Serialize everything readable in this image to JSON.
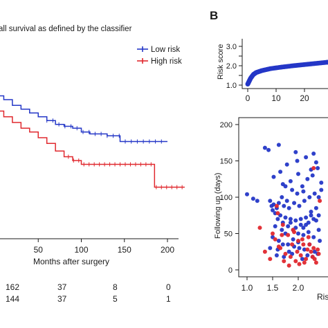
{
  "panel_a": {
    "title": "all survival as defined by the classifier",
    "legend": [
      "Low risk",
      "High risk"
    ]
  },
  "panel_b": {
    "label": "B"
  },
  "colors": {
    "low": "#2437c7",
    "high": "#e0282e",
    "axis": "#1a1a1a"
  },
  "risk_table": {
    "rows": [
      {
        "group": "Low risk",
        "values": [
          "162",
          "37",
          "8",
          "0"
        ]
      },
      {
        "group": "High risk",
        "values": [
          "144",
          "37",
          "5",
          "1"
        ]
      }
    ]
  },
  "chart_data": [
    {
      "type": "line",
      "title": "all survival as defined by the classifier",
      "xlabel": "Months after surgery",
      "ylabel": "",
      "xlim": [
        0,
        200
      ],
      "ylim": [
        0.2,
        1.0
      ],
      "x_ticks": [
        "50",
        "100",
        "150",
        "200"
      ],
      "series": [
        {
          "name": "Low risk",
          "x": [
            0,
            10,
            20,
            30,
            40,
            50,
            60,
            70,
            80,
            90,
            100,
            110,
            120,
            130,
            140,
            145,
            150,
            160,
            170,
            180,
            190,
            200
          ],
          "y": [
            0.86,
            0.84,
            0.81,
            0.79,
            0.77,
            0.75,
            0.73,
            0.71,
            0.7,
            0.69,
            0.67,
            0.66,
            0.66,
            0.65,
            0.65,
            0.62,
            0.62,
            0.62,
            0.62,
            0.62,
            0.62,
            0.62
          ]
        },
        {
          "name": "High risk",
          "x": [
            0,
            10,
            20,
            30,
            40,
            50,
            60,
            70,
            80,
            90,
            100,
            120,
            140,
            160,
            180,
            185,
            200,
            220
          ],
          "y": [
            0.78,
            0.75,
            0.72,
            0.69,
            0.67,
            0.64,
            0.61,
            0.57,
            0.54,
            0.52,
            0.5,
            0.5,
            0.5,
            0.5,
            0.5,
            0.38,
            0.38,
            0.38
          ]
        }
      ]
    },
    {
      "type": "line",
      "title": "",
      "xlabel": "",
      "ylabel": "Risk score",
      "xlim": [
        0,
        30
      ],
      "ylim": [
        1.0,
        3.0
      ],
      "x_ticks": [
        "0",
        "10",
        "20"
      ],
      "y_ticks": [
        "1.0",
        "1.5",
        "2.0",
        "2.5",
        "3.0"
      ],
      "series": [
        {
          "x": [
            0,
            0.5,
            1,
            2,
            3,
            5,
            8,
            12,
            16,
            20,
            24,
            28,
            30
          ],
          "y": [
            1.05,
            1.2,
            1.35,
            1.55,
            1.65,
            1.75,
            1.85,
            1.93,
            2.0,
            2.06,
            2.12,
            2.18,
            2.2
          ]
        }
      ]
    },
    {
      "type": "scatter",
      "title": "",
      "xlabel": "Ris",
      "ylabel": "Following up (days)",
      "xlim": [
        0.9,
        2.6
      ],
      "ylim": [
        0,
        200
      ],
      "x_ticks": [
        "1.0",
        "1.5",
        "2.0"
      ],
      "y_ticks": [
        "0",
        "50",
        "100",
        "150",
        "200"
      ],
      "series": [
        {
          "name": "Low risk",
          "color": "#2437c7",
          "x": [
            1.0,
            1.12,
            1.2,
            1.35,
            1.42,
            1.45,
            1.48,
            1.5,
            1.52,
            1.55,
            1.58,
            1.6,
            1.62,
            1.65,
            1.68,
            1.7,
            1.72,
            1.75,
            1.78,
            1.8,
            1.82,
            1.85,
            1.88,
            1.9,
            1.92,
            1.95,
            1.98,
            2.0,
            2.02,
            2.05,
            2.08,
            2.1,
            2.12,
            2.15,
            2.18,
            2.2,
            2.22,
            2.25,
            2.28,
            2.3,
            2.32,
            2.35,
            2.38,
            2.4,
            2.45,
            1.5,
            1.55,
            1.62,
            1.68,
            1.75,
            1.8,
            1.85,
            1.9,
            1.95,
            2.0,
            2.05,
            2.1,
            2.15,
            2.2,
            2.25,
            2.3,
            2.35,
            2.4,
            1.45,
            1.6,
            1.7,
            1.82,
            1.92,
            2.02,
            2.12,
            2.22,
            2.32,
            2.42,
            1.58,
            1.72,
            1.88,
            2.08,
            2.18,
            2.28,
            2.38,
            1.65,
            1.78,
            1.98,
            2.15,
            2.3,
            1.52,
            1.7,
            1.85,
            2.0,
            2.25,
            2.45,
            1.62,
            1.95,
            2.35,
            1.75,
            2.1,
            2.4
          ],
          "y": [
            104,
            98,
            95,
            168,
            165,
            95,
            88,
            82,
            90,
            78,
            85,
            70,
            92,
            75,
            100,
            65,
            88,
            72,
            95,
            60,
            85,
            70,
            110,
            55,
            92,
            68,
            105,
            50,
            88,
            62,
            115,
            58,
            95,
            72,
            125,
            65,
            100,
            80,
            130,
            70,
            105,
            85,
            140,
            75,
            120,
            45,
            60,
            40,
            55,
            50,
            35,
            65,
            42,
            58,
            38,
            70,
            48,
            62,
            52,
            75,
            45,
            68,
            55,
            30,
            28,
            35,
            25,
            32,
            30,
            28,
            35,
            25,
            40,
            20,
            18,
            22,
            15,
            20,
            18,
            22,
            135,
            145,
            150,
            155,
            160,
            128,
            118,
            122,
            132,
            138,
            110,
            172,
            162,
            148,
            115,
            108,
            100
          ]
        },
        {
          "name": "High risk",
          "color": "#e0282e",
          "x": [
            1.25,
            1.35,
            1.45,
            1.5,
            1.55,
            1.6,
            1.65,
            1.7,
            1.75,
            1.8,
            1.85,
            1.9,
            1.95,
            2.0,
            2.05,
            2.1,
            2.15,
            2.2,
            2.25,
            2.3,
            2.35,
            2.4,
            1.58,
            1.72,
            1.88,
            2.02,
            2.18,
            2.32,
            1.68,
            1.82,
            1.98,
            2.12,
            2.28,
            1.62,
            1.92,
            2.08,
            2.22,
            2.38,
            2.3,
            2.42
          ],
          "y": [
            58,
            25,
            15,
            50,
            42,
            78,
            30,
            62,
            22,
            48,
            18,
            55,
            12,
            40,
            20,
            35,
            15,
            45,
            25,
            30,
            10,
            22,
            88,
            12,
            35,
            8,
            28,
            15,
            48,
            6,
            25,
            10,
            18,
            32,
            52,
            42,
            35,
            28,
            140,
            95
          ]
        }
      ]
    }
  ]
}
